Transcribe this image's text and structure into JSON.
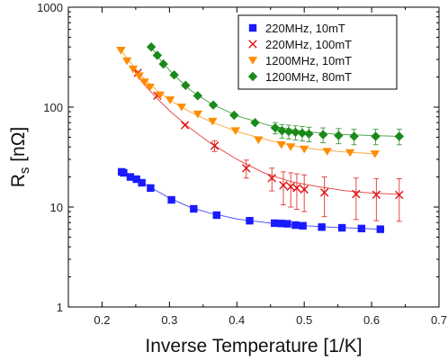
{
  "chart_data": {
    "type": "scatter",
    "xlabel": "Inverse Temperature [1/K]",
    "ylabel_main": "R",
    "ylabel_sub": "s",
    "ylabel_unit": " [nΩ]",
    "xlim": [
      0.15,
      0.7
    ],
    "ylim": [
      1,
      1000
    ],
    "yscale": "log",
    "xticks": [
      0.2,
      0.3,
      0.4,
      0.5,
      0.6,
      0.7
    ],
    "xtick_labels": [
      "0.2",
      "0.3",
      "0.4",
      "0.5",
      "0.6",
      "0.7"
    ],
    "yticks": [
      1,
      10,
      100,
      1000
    ],
    "ytick_labels": [
      "1",
      "10",
      "100",
      "1000"
    ],
    "grid": false,
    "legend_position": "top-right",
    "series": [
      {
        "name": "220MHz, 10mT",
        "marker": "square",
        "color": "#1a1aff",
        "x": [
          0.229,
          0.232,
          0.242,
          0.251,
          0.259,
          0.272,
          0.303,
          0.336,
          0.37,
          0.419,
          0.456,
          0.466,
          0.475,
          0.487,
          0.498,
          0.526,
          0.556,
          0.585,
          0.613
        ],
        "y": [
          22.5,
          22.0,
          20.0,
          19.0,
          17.5,
          15.5,
          11.8,
          9.6,
          8.3,
          7.3,
          6.9,
          6.85,
          6.8,
          6.6,
          6.5,
          6.3,
          6.2,
          6.1,
          6.0
        ],
        "fit_x": [
          0.229,
          0.25,
          0.27,
          0.3,
          0.33,
          0.36,
          0.4,
          0.45,
          0.5,
          0.55,
          0.613
        ],
        "fit_y": [
          23.5,
          19.5,
          16.0,
          12.3,
          10.0,
          8.7,
          7.6,
          6.9,
          6.5,
          6.25,
          6.0
        ]
      },
      {
        "name": "220MHz, 100mT",
        "marker": "x",
        "color": "#e01010",
        "x": [
          0.253,
          0.282,
          0.323,
          0.367,
          0.414,
          0.452,
          0.469,
          0.48,
          0.489,
          0.5,
          0.53,
          0.577,
          0.607,
          0.641
        ],
        "y": [
          220,
          130,
          66,
          41,
          24.5,
          19.5,
          16.5,
          16.0,
          15.5,
          15.0,
          14.0,
          13.5,
          13.3,
          13.2
        ],
        "err": [
          0,
          0,
          0,
          5,
          5,
          5,
          6,
          6,
          6,
          6,
          6,
          6,
          6,
          6
        ],
        "fit_x": [
          0.245,
          0.26,
          0.28,
          0.3,
          0.33,
          0.36,
          0.4,
          0.44,
          0.48,
          0.52,
          0.56,
          0.6,
          0.641
        ],
        "fit_y": [
          250,
          175,
          125,
          92,
          62,
          44,
          30,
          22,
          18,
          16,
          14.6,
          13.8,
          13.4
        ]
      },
      {
        "name": "1200MHz, 10mT",
        "marker": "triangle-down",
        "color": "#ff8c00",
        "x": [
          0.228,
          0.237,
          0.246,
          0.255,
          0.263,
          0.271,
          0.286,
          0.301,
          0.318,
          0.342,
          0.364,
          0.398,
          0.432,
          0.466,
          0.48,
          0.5,
          0.534,
          0.568,
          0.605
        ],
        "y": [
          370,
          290,
          240,
          205,
          178,
          158,
          132,
          118,
          100,
          85,
          72,
          58,
          47,
          42,
          40,
          38,
          36,
          35,
          34
        ],
        "fit_x": [
          0.228,
          0.24,
          0.26,
          0.28,
          0.3,
          0.33,
          0.36,
          0.4,
          0.45,
          0.5,
          0.55,
          0.605
        ],
        "fit_y": [
          370,
          290,
          200,
          150,
          118,
          90,
          72,
          57,
          46,
          39,
          36,
          34
        ]
      },
      {
        "name": "1200MHz, 80mT",
        "marker": "diamond",
        "color": "#1a8a1a",
        "x": [
          0.273,
          0.282,
          0.291,
          0.307,
          0.324,
          0.342,
          0.365,
          0.396,
          0.427,
          0.457,
          0.467,
          0.477,
          0.487,
          0.497,
          0.507,
          0.528,
          0.551,
          0.574,
          0.606,
          0.641
        ],
        "y": [
          400,
          330,
          270,
          210,
          165,
          130,
          105,
          83,
          70,
          62,
          58,
          57,
          56,
          55,
          54,
          53,
          52,
          51,
          51,
          51
        ],
        "err": [
          0,
          0,
          0,
          0,
          0,
          0,
          0,
          0,
          0,
          8,
          9,
          9,
          9,
          9,
          9,
          9,
          9,
          9,
          9,
          9
        ],
        "fit_x": [
          0.273,
          0.29,
          0.31,
          0.33,
          0.36,
          0.4,
          0.45,
          0.5,
          0.55,
          0.6,
          0.641
        ],
        "fit_y": [
          400,
          275,
          200,
          150,
          110,
          82,
          65,
          57,
          53.5,
          52,
          51
        ]
      }
    ]
  }
}
